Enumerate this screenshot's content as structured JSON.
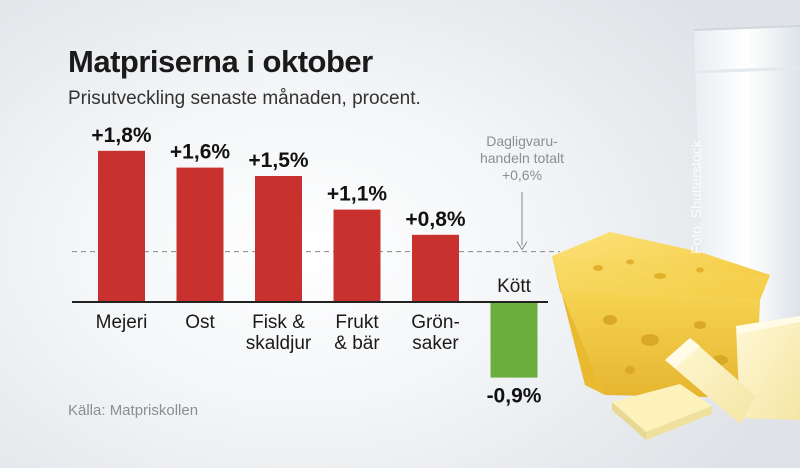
{
  "title": "Matpriserna i oktober",
  "subtitle": "Prisutveckling senaste månaden, procent.",
  "source": "Källa: Matpriskollen",
  "photo_credit": "Foto: Shutterstock",
  "colors": {
    "positive": "#c8312d",
    "negative": "#6aae3e",
    "axis": "#222222",
    "reference": "#888888"
  },
  "chart_data": {
    "type": "bar",
    "unit": "%",
    "categories": [
      [
        "Mejeri"
      ],
      [
        "Ost"
      ],
      [
        "Fisk &",
        "skaldjur"
      ],
      [
        "Frukt",
        "& bär"
      ],
      [
        "Grön-",
        "saker"
      ],
      [
        "Kött"
      ]
    ],
    "values": [
      1.8,
      1.6,
      1.5,
      1.1,
      0.8,
      -0.9
    ],
    "value_labels": [
      "+1,8%",
      "+1,6%",
      "+1,5%",
      "+1,1%",
      "+0,8%",
      "-0,9%"
    ],
    "reference_line": {
      "value": 0.6,
      "label": [
        "Dagligvaru-",
        "handeln totalt",
        "+0,6%"
      ]
    },
    "grid": false
  }
}
